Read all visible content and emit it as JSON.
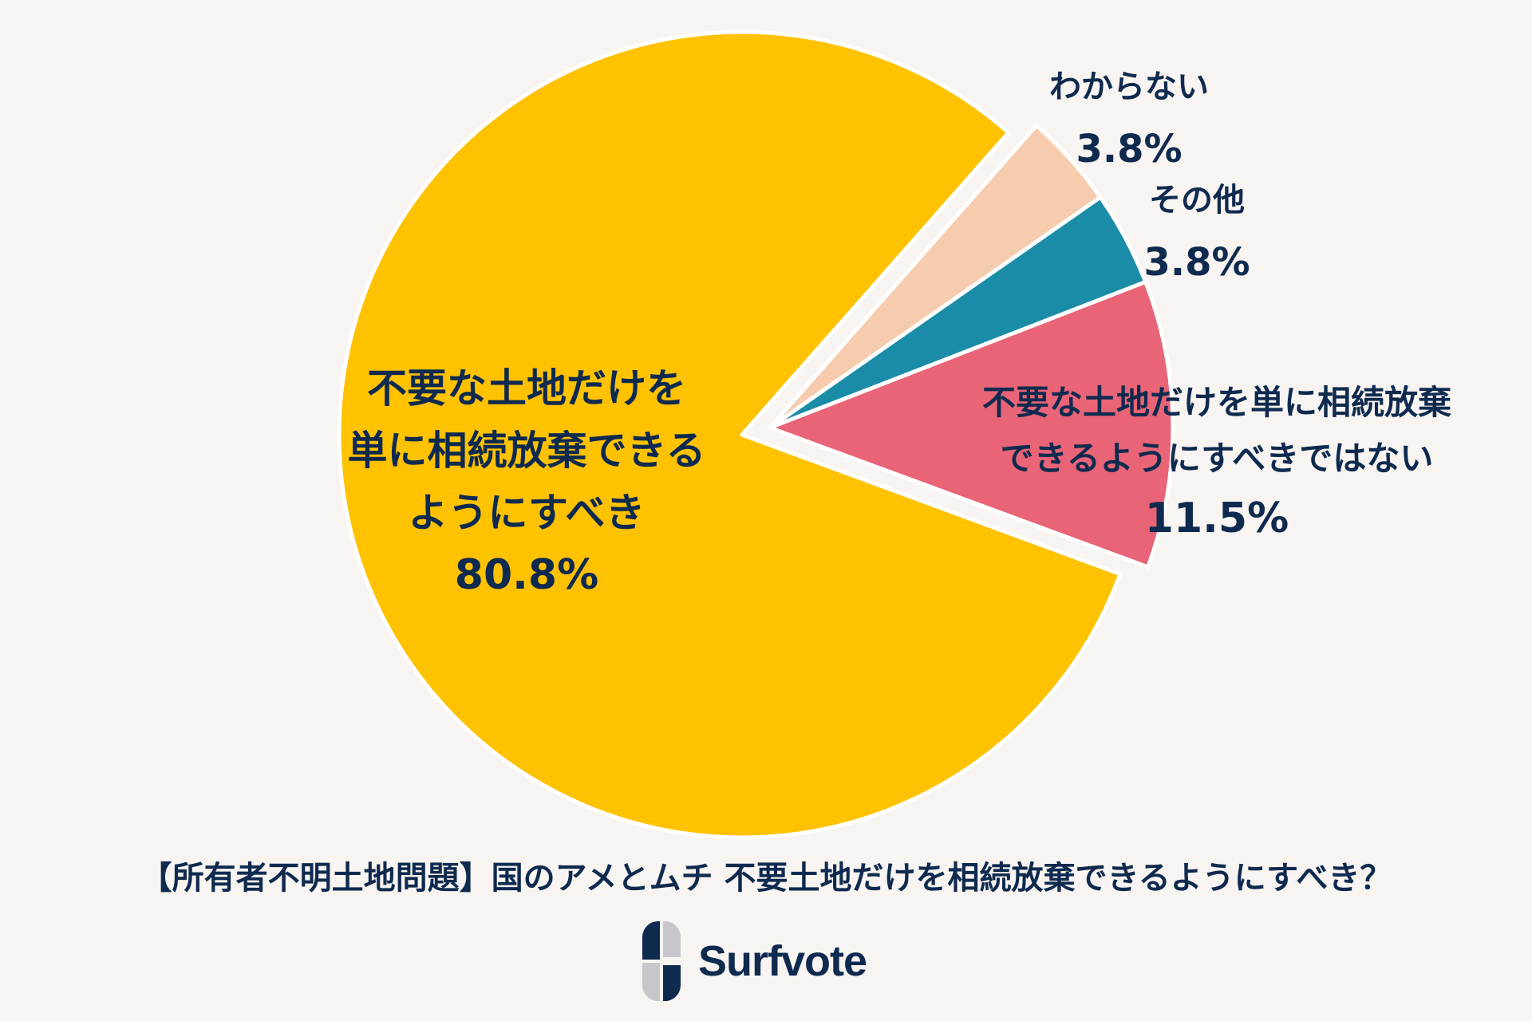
{
  "chart_data": {
    "type": "pie",
    "title": "【所有者不明土地問題】国のアメとムチ 不要土地だけを相続放棄できるようにすべき？",
    "start_angle_deg": 41.4,
    "direction": "clockwise",
    "slices": [
      {
        "label": "わからない",
        "value": 3.8,
        "display": "3.8%",
        "color": "#f7cbae",
        "exploded": true
      },
      {
        "label": "その他",
        "value": 3.8,
        "display": "3.8%",
        "color": "#1b8ca8",
        "exploded": true
      },
      {
        "label": "不要な土地だけを単に相続放棄できるようにすべきではない",
        "value": 11.5,
        "display": "11.5%",
        "color": "#e86476",
        "exploded": true
      },
      {
        "label": "不要な土地だけを単に相続放棄できるようにすべき",
        "value": 80.8,
        "display": "80.8%",
        "color": "#ffc200",
        "exploded": false
      }
    ],
    "legend": "none (labels on slices)"
  },
  "labels": {
    "yellow": {
      "lines": [
        "不要な土地だけを",
        "単に相続放棄できる",
        "ようにすべき"
      ],
      "pct": "80.8%"
    },
    "pink": {
      "lines": [
        "不要な土地だけを単に相続放棄",
        "できるようにすべきではない"
      ],
      "pct": "11.5%"
    },
    "peach": {
      "lines": [
        "わからない"
      ],
      "pct": "3.8%"
    },
    "teal": {
      "lines": [
        "その他"
      ],
      "pct": "3.8%"
    }
  },
  "title": "【所有者不明土地問題】国のアメとムチ 不要土地だけを相続放棄できるようにすべき？",
  "brand": {
    "name": "Surfvote",
    "dark": "#0f2a4f",
    "light": "#c8c5cb"
  }
}
